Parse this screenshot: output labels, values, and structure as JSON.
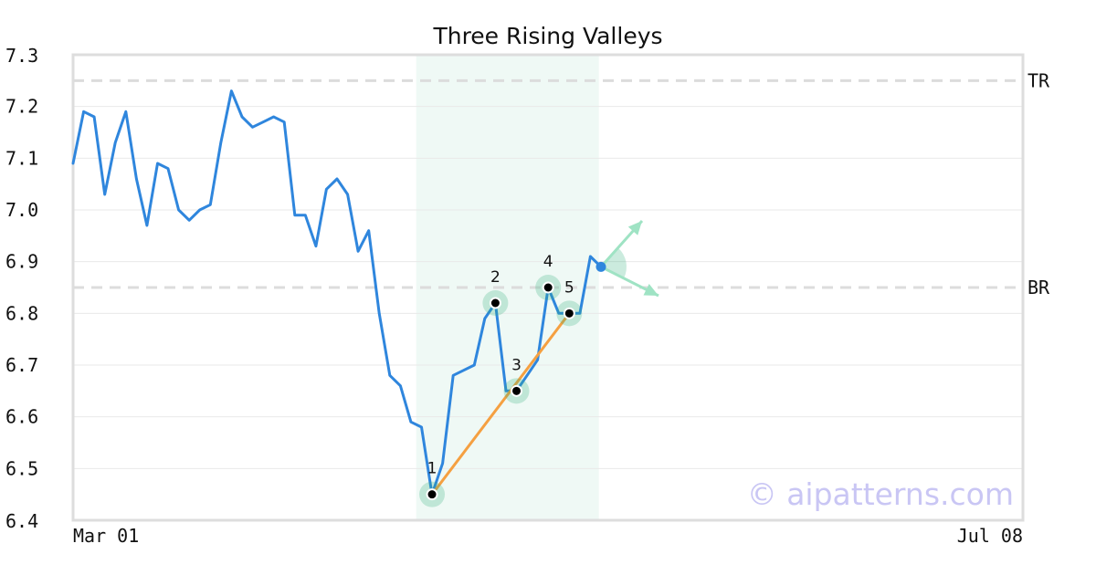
{
  "chart_data": {
    "type": "line",
    "title": "Three Rising Valleys",
    "ylim": [
      6.4,
      7.3
    ],
    "y_ticks": [
      "7.3",
      "7.2",
      "7.1",
      "7.0",
      "6.9",
      "6.8",
      "6.7",
      "6.6",
      "6.5",
      "6.4"
    ],
    "x_tick_labels": [
      "Mar 01",
      "Jul 08"
    ],
    "grid": true,
    "series": [
      {
        "color": "#2f86dd",
        "values": [
          7.09,
          7.19,
          7.18,
          7.03,
          7.13,
          7.19,
          7.06,
          6.97,
          7.09,
          7.08,
          7.0,
          6.98,
          7.0,
          7.01,
          7.13,
          7.23,
          7.18,
          7.16,
          7.17,
          7.18,
          7.17,
          6.99,
          6.99,
          6.93,
          7.04,
          7.06,
          7.03,
          6.92,
          6.96,
          6.8,
          6.68,
          6.66,
          6.59,
          6.58,
          6.45,
          6.51,
          6.68,
          6.69,
          6.7,
          6.79,
          6.82,
          6.65,
          6.65,
          6.68,
          6.71,
          6.85,
          6.8,
          6.8,
          6.8,
          6.91,
          6.89
        ]
      }
    ],
    "levels": [
      {
        "label": "TR",
        "value": 7.25
      },
      {
        "label": "BR",
        "value": 6.85
      }
    ],
    "highlight_index_range": [
      32.5,
      49.8
    ],
    "pattern_points": [
      {
        "label": "1",
        "index": 34,
        "value": 6.45
      },
      {
        "label": "2",
        "index": 40,
        "value": 6.82
      },
      {
        "label": "3",
        "index": 42,
        "value": 6.65
      },
      {
        "label": "4",
        "index": 45,
        "value": 6.85
      },
      {
        "label": "5",
        "index": 47,
        "value": 6.8
      }
    ],
    "trend_line": {
      "color": "#f5a041",
      "from_index": 34,
      "from_value": 6.45,
      "to_index": 47,
      "to_value": 6.8
    },
    "last_point_color": "#2f86dd",
    "highlight_color": "#2fb07a",
    "watermark": "© aipatterns.com"
  }
}
